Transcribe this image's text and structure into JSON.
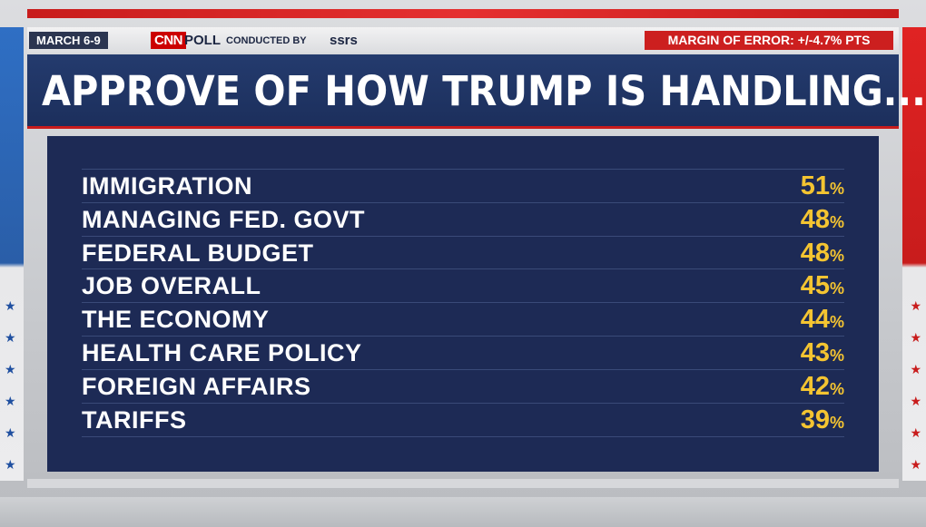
{
  "header": {
    "date": "MARCH 6-9",
    "network_logo": "CNN",
    "poll_label": "POLL",
    "conducted_by": "CONDUCTED BY",
    "pollster": "ssrs",
    "margin_of_error": "MARGIN OF ERROR: +/-4.7% PTS"
  },
  "colors": {
    "title_bar": "#1c2f5c",
    "panel": "#1d2a55",
    "value_text": "#f4c431",
    "accent_red": "#c81c1c",
    "accent_blue": "#2f6fc4"
  },
  "chart_data": {
    "type": "table",
    "title": "APPROVE OF HOW TRUMP IS HANDLING...",
    "unit": "%",
    "rows": [
      {
        "label": "IMMIGRATION",
        "value": 51
      },
      {
        "label": "MANAGING FED. GOVT",
        "value": 48
      },
      {
        "label": "FEDERAL BUDGET",
        "value": 48
      },
      {
        "label": "JOB OVERALL",
        "value": 45
      },
      {
        "label": "THE ECONOMY",
        "value": 44
      },
      {
        "label": "HEALTH CARE POLICY",
        "value": 43
      },
      {
        "label": "FOREIGN AFFAIRS",
        "value": 42
      },
      {
        "label": "TARIFFS",
        "value": 39
      }
    ]
  }
}
